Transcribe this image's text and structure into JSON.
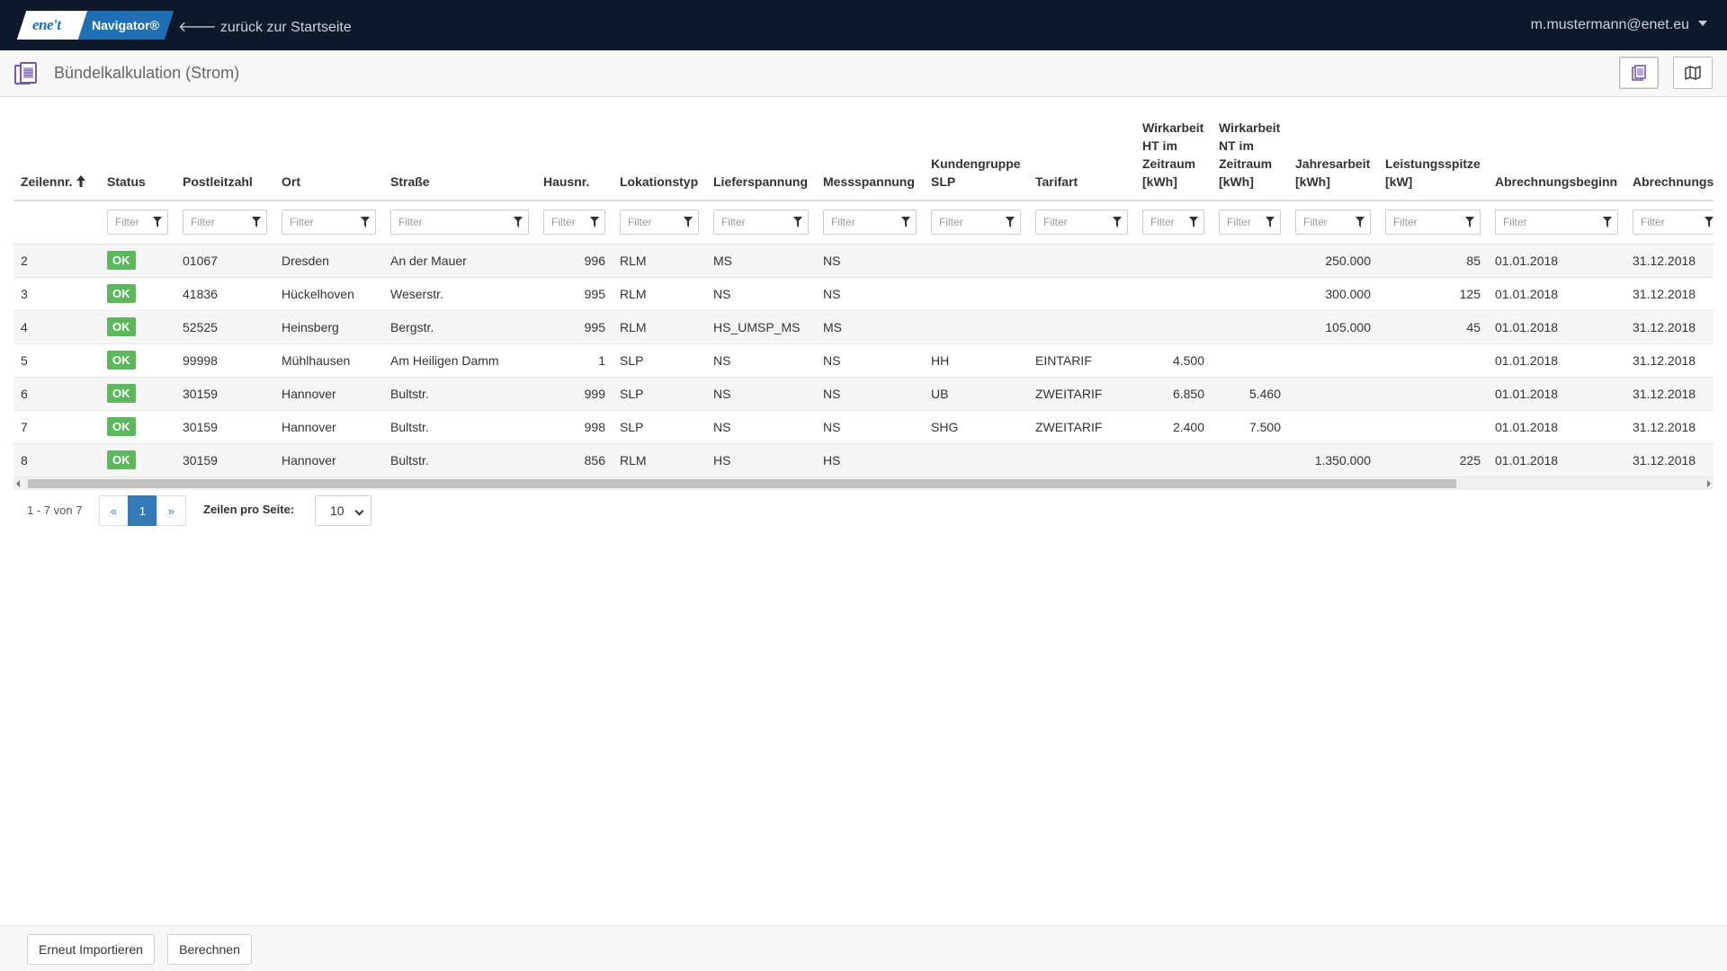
{
  "navbar": {
    "brand_logo": "ene't",
    "brand_name": "Navigator®",
    "back_link": "zurück zur Startseite",
    "user": "m.mustermann@enet.eu"
  },
  "header": {
    "title": "Bündelkalkulation (Strom)"
  },
  "table": {
    "filter_placeholder": "Filter",
    "columns": [
      {
        "label": "Zeilennr."
      },
      {
        "label": "Status"
      },
      {
        "label": "Postleitzahl"
      },
      {
        "label": "Ort"
      },
      {
        "label": "Straße"
      },
      {
        "label": "Hausnr."
      },
      {
        "label": "Lokationstyp"
      },
      {
        "label": "Lieferspannung"
      },
      {
        "label": "Messspannung"
      },
      {
        "label": "Kundengruppe SLP"
      },
      {
        "label": "Tarifart"
      },
      {
        "label": "Wirkarbeit HT im Zeitraum [kWh]"
      },
      {
        "label": "Wirkarbeit NT im Zeitraum [kWh]"
      },
      {
        "label": "Jahresarbeit [kWh]"
      },
      {
        "label": "Leistungsspitze [kW]"
      },
      {
        "label": "Abrechnungsbeginn"
      },
      {
        "label": "Abrechnungsende"
      }
    ],
    "rows": [
      {
        "nr": "2",
        "status": "OK",
        "plz": "01067",
        "ort": "Dresden",
        "strasse": "An der Mauer",
        "hausnr": "996",
        "lokationstyp": "RLM",
        "lieferspannung": "MS",
        "messspannung": "NS",
        "kundengruppe": "",
        "tarifart": "",
        "ht": "",
        "nt": "",
        "jahresarbeit": "250.000",
        "leistungsspitze": "85",
        "beginn": "01.01.2018",
        "ende": "31.12.2018"
      },
      {
        "nr": "3",
        "status": "OK",
        "plz": "41836",
        "ort": "Hückelhoven",
        "strasse": "Weserstr.",
        "hausnr": "995",
        "lokationstyp": "RLM",
        "lieferspannung": "NS",
        "messspannung": "NS",
        "kundengruppe": "",
        "tarifart": "",
        "ht": "",
        "nt": "",
        "jahresarbeit": "300.000",
        "leistungsspitze": "125",
        "beginn": "01.01.2018",
        "ende": "31.12.2018"
      },
      {
        "nr": "4",
        "status": "OK",
        "plz": "52525",
        "ort": "Heinsberg",
        "strasse": "Bergstr.",
        "hausnr": "995",
        "lokationstyp": "RLM",
        "lieferspannung": "HS_UMSP_MS",
        "messspannung": "MS",
        "kundengruppe": "",
        "tarifart": "",
        "ht": "",
        "nt": "",
        "jahresarbeit": "105.000",
        "leistungsspitze": "45",
        "beginn": "01.01.2018",
        "ende": "31.12.2018"
      },
      {
        "nr": "5",
        "status": "OK",
        "plz": "99998",
        "ort": "Mühlhausen",
        "strasse": "Am Heiligen Damm",
        "hausnr": "1",
        "lokationstyp": "SLP",
        "lieferspannung": "NS",
        "messspannung": "NS",
        "kundengruppe": "HH",
        "tarifart": "EINTARIF",
        "ht": "4.500",
        "nt": "",
        "jahresarbeit": "",
        "leistungsspitze": "",
        "beginn": "01.01.2018",
        "ende": "31.12.2018"
      },
      {
        "nr": "6",
        "status": "OK",
        "plz": "30159",
        "ort": "Hannover",
        "strasse": "Bultstr.",
        "hausnr": "999",
        "lokationstyp": "SLP",
        "lieferspannung": "NS",
        "messspannung": "NS",
        "kundengruppe": "UB",
        "tarifart": "ZWEITARIF",
        "ht": "6.850",
        "nt": "5.460",
        "jahresarbeit": "",
        "leistungsspitze": "",
        "beginn": "01.01.2018",
        "ende": "31.12.2018"
      },
      {
        "nr": "7",
        "status": "OK",
        "plz": "30159",
        "ort": "Hannover",
        "strasse": "Bultstr.",
        "hausnr": "998",
        "lokationstyp": "SLP",
        "lieferspannung": "NS",
        "messspannung": "NS",
        "kundengruppe": "SHG",
        "tarifart": "ZWEITARIF",
        "ht": "2.400",
        "nt": "7.500",
        "jahresarbeit": "",
        "leistungsspitze": "",
        "beginn": "01.01.2018",
        "ende": "31.12.2018"
      },
      {
        "nr": "8",
        "status": "OK",
        "plz": "30159",
        "ort": "Hannover",
        "strasse": "Bultstr.",
        "hausnr": "856",
        "lokationstyp": "RLM",
        "lieferspannung": "HS",
        "messspannung": "HS",
        "kundengruppe": "",
        "tarifart": "",
        "ht": "",
        "nt": "",
        "jahresarbeit": "1.350.000",
        "leistungsspitze": "225",
        "beginn": "01.01.2018",
        "ende": "31.12.2018"
      }
    ]
  },
  "pagination": {
    "range": "1 - 7 von 7",
    "prev": "«",
    "current": "1",
    "next": "»",
    "rows_label": "Zeilen pro Seite:",
    "rows_value": "10"
  },
  "footer": {
    "reimport_label": "Erneut Importieren",
    "calculate_label": "Berechnen"
  },
  "colors": {
    "navbar_bg": "#0e1a2b",
    "brand_blue": "#1f6fb5",
    "ok_green": "#5cb85c",
    "pager_active": "#337ab7"
  },
  "icons": {
    "back": "arrow-left-icon",
    "user_menu": "caret-down-icon",
    "page": "documents-icon",
    "sort": "sort-ascending-icon",
    "filter": "funnel-icon",
    "document_view": "document-view-icon",
    "map_view": "map-icon"
  }
}
